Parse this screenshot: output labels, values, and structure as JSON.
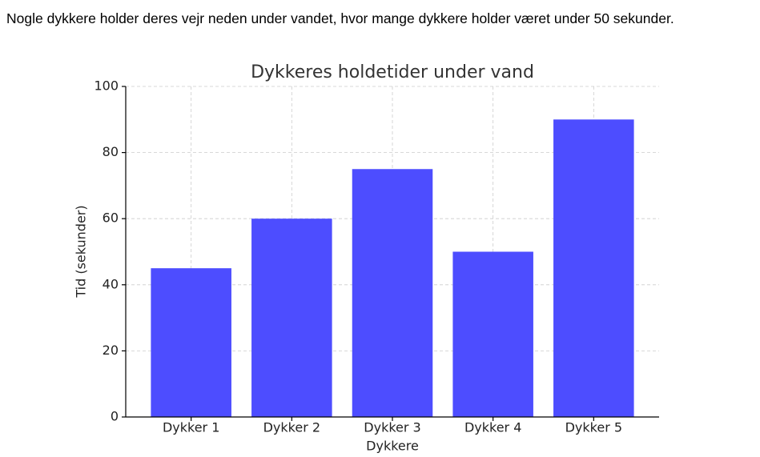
{
  "question": "Nogle dykkere holder deres vejr neden under vandet, hvor mange dykkere holder været under 50 sekunder.",
  "chart_data": {
    "type": "bar",
    "title": "Dykkeres holdetider under vand",
    "x_label": "Dykkere",
    "y_label": "Tid (sekunder)",
    "categories": [
      "Dykker 1",
      "Dykker 2",
      "Dykker 3",
      "Dykker 4",
      "Dykker 5"
    ],
    "values": [
      45,
      60,
      75,
      50,
      90
    ],
    "color": "#4d4dff",
    "ylim": [
      0,
      100
    ],
    "yticks": [
      0,
      20,
      40,
      60,
      80,
      100
    ],
    "grid": true
  }
}
